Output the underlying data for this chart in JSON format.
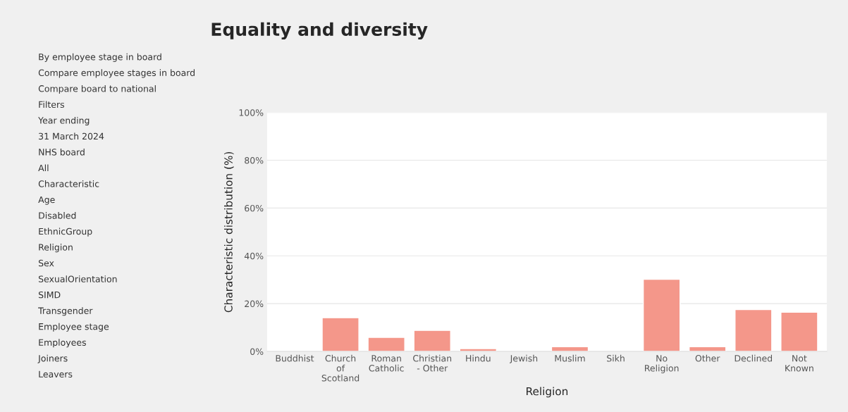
{
  "chart_data": {
    "type": "bar",
    "title": "Equality and diversity",
    "categories": [
      "Buddhist",
      "Church\nof\nScotland",
      "Roman\nCatholic",
      "Christian\n- Other",
      "Hindu",
      "Jewish",
      "Muslim",
      "Sikh",
      "No\nReligion",
      "Other",
      "Declined",
      "Not\nKnown"
    ],
    "values": [
      null,
      14.1,
      5.9,
      8.8,
      1.2,
      null,
      2.0,
      null,
      30.2,
      2.0,
      17.5,
      16.4
    ],
    "color": "#f4978a",
    "xlabel": "Religion",
    "ylabel": "Characteristic distribution (%)",
    "ylim": [
      0,
      100
    ],
    "yticks": [
      {
        "value": 0,
        "label": "0%"
      },
      {
        "value": 20,
        "label": "20%"
      },
      {
        "value": 40,
        "label": "40%"
      },
      {
        "value": 60,
        "label": "60%"
      },
      {
        "value": 80,
        "label": "80%"
      },
      {
        "value": 100,
        "label": "100%"
      }
    ],
    "grid": "y",
    "annotations": [
      "By employee stage in board",
      "Compare employee stages in board",
      "Compare board to national",
      "Filters",
      "Year ending",
      "31 March 2024",
      "NHS board",
      "All",
      "Characteristic",
      "Age",
      "Disabled",
      "EthnicGroup",
      "Religion",
      "Sex",
      "SexualOrientation",
      "SIMD",
      "Transgender",
      "Employee stage",
      "Employees",
      "Joiners",
      "Leavers"
    ]
  }
}
